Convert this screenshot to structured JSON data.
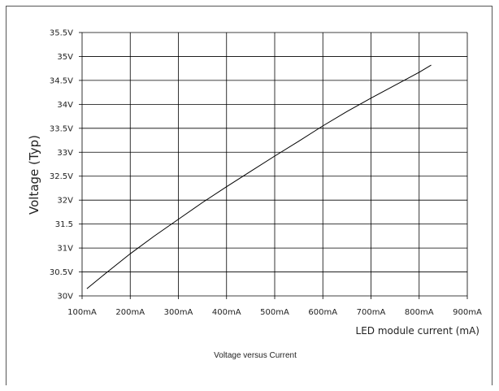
{
  "chart_data": {
    "type": "line",
    "title": "",
    "caption": "Voltage versus Current",
    "xlabel": "LED module current (mA)",
    "ylabel": "Voltage (Typ)",
    "xlim": [
      100,
      900
    ],
    "ylim": [
      30,
      35.5
    ],
    "x_ticks": [
      100,
      200,
      300,
      400,
      500,
      600,
      700,
      800,
      900
    ],
    "x_tick_labels": [
      "100mA",
      "200mA",
      "300mA",
      "400mA",
      "500mA",
      "600mA",
      "700mA",
      "800mA",
      "900mA"
    ],
    "y_ticks": [
      30,
      30.5,
      31,
      31.5,
      32,
      32.5,
      33,
      33.5,
      34,
      34.5,
      35,
      35.5
    ],
    "y_tick_labels": [
      "30V",
      "30.5V",
      "31V",
      "31.5",
      "32V",
      "32.5V",
      "33V",
      "33.5V",
      "34V",
      "34.5V",
      "35V",
      "35.5V"
    ],
    "grid": true,
    "series": [
      {
        "x": [
          110,
          150,
          200,
          250,
          300,
          350,
          400,
          450,
          500,
          550,
          600,
          650,
          700,
          750,
          800,
          825
        ],
        "y": [
          30.15,
          30.48,
          30.88,
          31.25,
          31.6,
          31.95,
          32.28,
          32.6,
          32.92,
          33.23,
          33.55,
          33.85,
          34.13,
          34.4,
          34.67,
          34.82
        ]
      }
    ],
    "line_color": "#000000",
    "grid_color": "#000000"
  }
}
